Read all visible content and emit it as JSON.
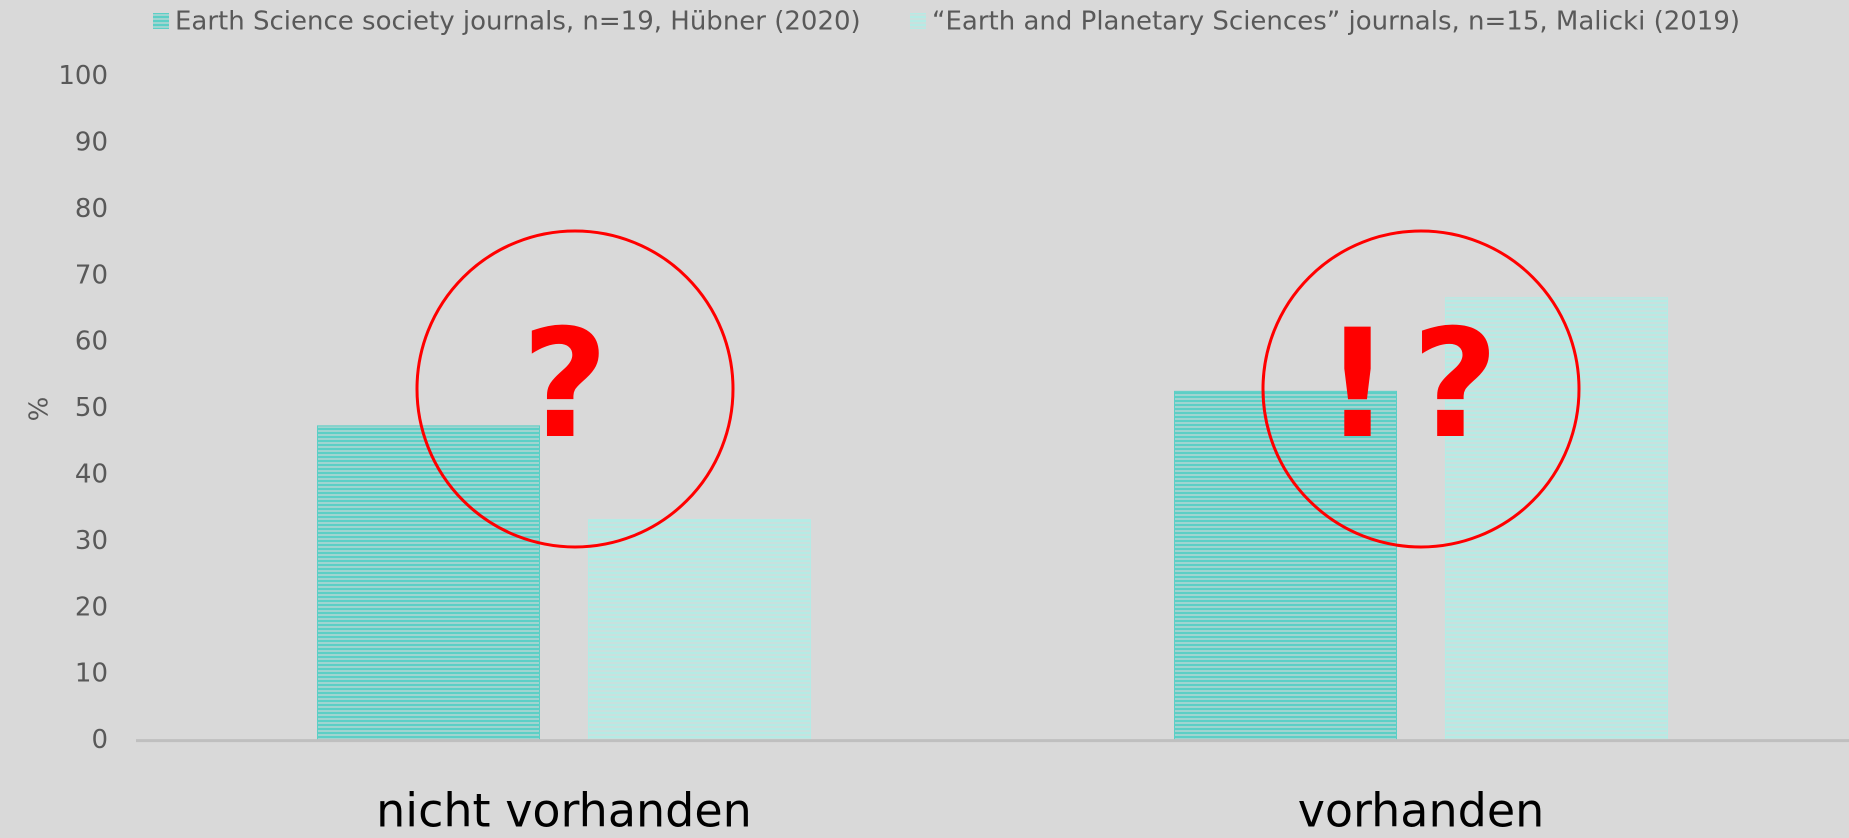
{
  "chart_data": {
    "type": "bar",
    "categories": [
      "nicht vorhanden",
      "vorhanden"
    ],
    "series": [
      {
        "name": "Earth Science society journals, n=19, Hübner (2020)",
        "color": "#5ccfc6",
        "values": [
          47.4,
          52.6
        ]
      },
      {
        "name": "“Earth and Planetary Sciences” journals, n=15, Malicki (2019)",
        "color": "#b5ebe5",
        "values": [
          33.3,
          66.7
        ]
      }
    ],
    "ylabel": "%",
    "ylim": [
      0,
      100
    ],
    "yticks": [
      0,
      10,
      20,
      30,
      40,
      50,
      60,
      70,
      80,
      90,
      100
    ],
    "annotations": [
      "?",
      "!?"
    ],
    "legend": "top"
  }
}
